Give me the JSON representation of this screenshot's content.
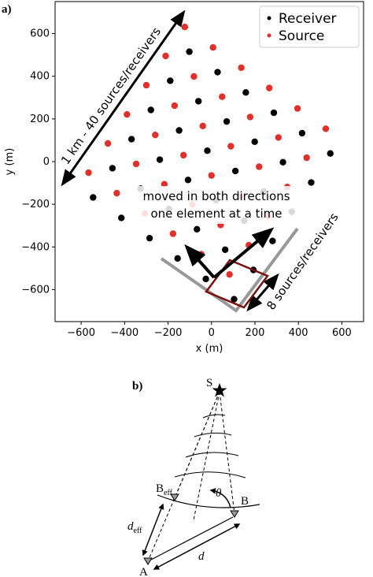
{
  "chart_data": {
    "type": "scatter",
    "panel_label": "a)",
    "xlabel": "x (m)",
    "ylabel": "y (m)",
    "xlim": [
      -720,
      700
    ],
    "ylim": [
      -750,
      750
    ],
    "xticks": [
      {
        "value": -600,
        "label": "−600"
      },
      {
        "value": -400,
        "label": "−400"
      },
      {
        "value": -200,
        "label": "−200"
      },
      0,
      200,
      400,
      600
    ],
    "yticks": [
      {
        "value": -600,
        "label": "−600"
      },
      {
        "value": -400,
        "label": "−400"
      },
      {
        "value": -200,
        "label": "−200"
      },
      0,
      200,
      400,
      600
    ],
    "legend": "upper right",
    "annotations": [
      "1 km - 40 sources/receivers",
      "moved in both directions",
      "one element at a time",
      "8 sources/receivers"
    ],
    "series": [
      {
        "name": "Receiver",
        "color": "#000000",
        "x": [
          104,
          193,
          281,
          370,
          459,
          547,
          -26,
          63,
          151,
          240,
          329,
          417,
          -156,
          -67,
          21,
          110,
          199,
          287,
          -285,
          -196,
          -108,
          -19,
          70,
          158,
          -415,
          -326,
          -238,
          -149,
          -60,
          28,
          -545,
          -456,
          -368,
          -279,
          -190,
          -102
        ],
        "y": [
          -645,
          -508,
          -372,
          -235,
          -98,
          38,
          -550,
          -413,
          -277,
          -140,
          -3,
          133,
          -454,
          -317,
          -181,
          -44,
          93,
          229,
          -359,
          -222,
          -86,
          51,
          188,
          324,
          -264,
          -127,
          9,
          146,
          283,
          419,
          -168,
          -31,
          105,
          242,
          379,
          515
        ]
      },
      {
        "name": "Source",
        "color": "#e0302a",
        "x": [
          83,
          172,
          260,
          349,
          438,
          526,
          -47,
          42,
          130,
          219,
          308,
          396,
          -177,
          -88,
          0,
          89,
          178,
          266,
          -306,
          -217,
          -129,
          -40,
          49,
          137,
          -436,
          -347,
          -259,
          -170,
          -81,
          7,
          -566,
          -477,
          -389,
          -300,
          -211,
          -123
        ],
        "y": [
          -529,
          -392,
          -256,
          -119,
          18,
          154,
          -434,
          -297,
          -161,
          -24,
          113,
          249,
          -338,
          -201,
          -65,
          72,
          209,
          345,
          -243,
          -106,
          30,
          167,
          304,
          440,
          -148,
          -11,
          125,
          262,
          399,
          535,
          -52,
          85,
          221,
          358,
          495,
          631
        ]
      }
    ]
  },
  "diagram": {
    "panel_label": "b)",
    "s": "S",
    "b_eff": {
      "main": "B",
      "sub": "eff"
    },
    "theta": "θ",
    "b": "B",
    "d_eff": {
      "main": "d",
      "sub": "eff"
    },
    "a": "A",
    "d": "d"
  }
}
